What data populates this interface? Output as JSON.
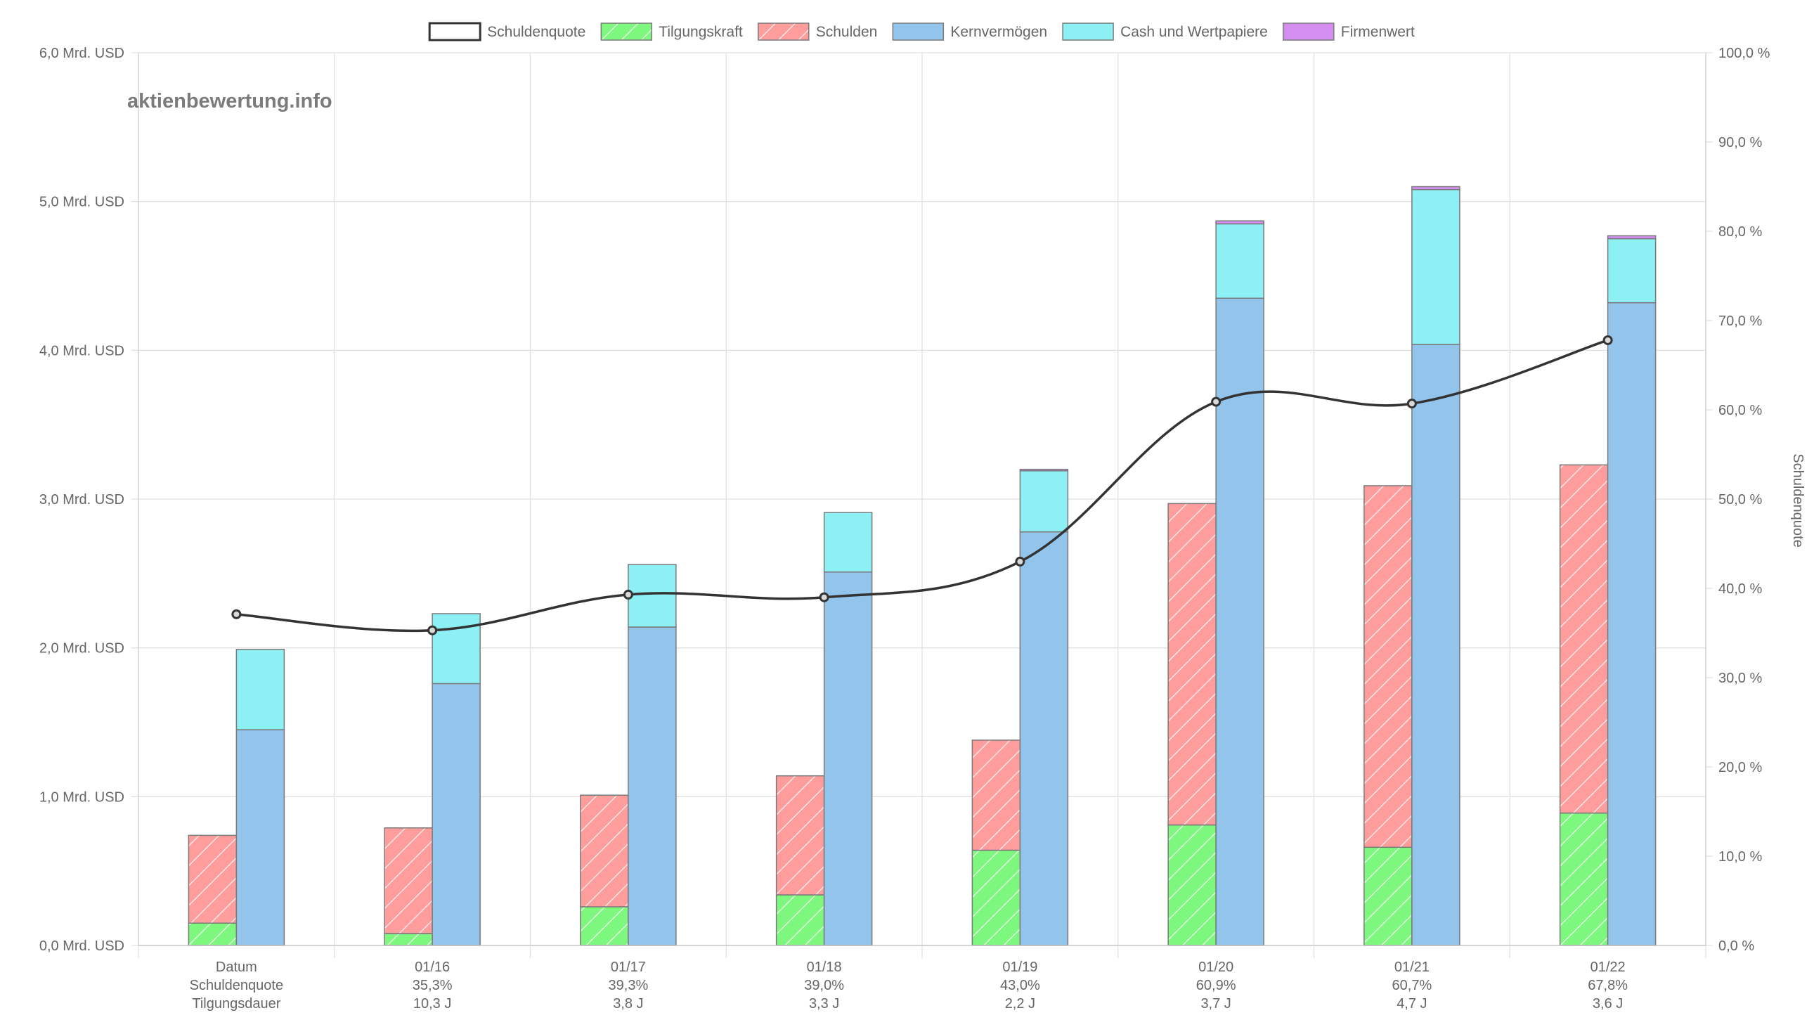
{
  "watermark": "aktienbewertung.info",
  "chart_data": {
    "type": "bar",
    "categories": [
      "Datum",
      "01/16",
      "01/17",
      "01/18",
      "01/19",
      "01/20",
      "01/21",
      "01/22"
    ],
    "table_rows": {
      "schuldenquote_label": "Schuldenquote",
      "tilgungsdauer_label": "Tilgungsdauer",
      "schuldenquote": [
        "",
        "35,3%",
        "39,3%",
        "39,0%",
        "43,0%",
        "60,9%",
        "60,7%",
        "67,8%"
      ],
      "tilgungsdauer": [
        "",
        "10,3 J",
        "3,8 J",
        "3,3 J",
        "2,2 J",
        "3,7 J",
        "4,7 J",
        "3,6 J"
      ]
    },
    "legend": [
      "Schuldenquote",
      "Tilgungskraft",
      "Schulden",
      "Kernvermögen",
      "Cash und Wertpapiere",
      "Firmenwert"
    ],
    "series": [
      {
        "name": "Schuldenquote",
        "axis": "right",
        "kind": "line",
        "values": [
          37.1,
          35.3,
          39.3,
          39.0,
          43.0,
          60.9,
          60.7,
          67.8
        ]
      },
      {
        "name": "Tilgungskraft",
        "stack": "liabilities",
        "values": [
          0.15,
          0.08,
          0.26,
          0.34,
          0.64,
          0.81,
          0.66,
          0.89
        ]
      },
      {
        "name": "Schulden",
        "stack": "liabilities",
        "values": [
          0.59,
          0.71,
          0.75,
          0.8,
          0.74,
          2.16,
          2.43,
          2.34
        ]
      },
      {
        "name": "Kernvermögen",
        "stack": "assets",
        "values": [
          1.45,
          1.76,
          2.14,
          2.51,
          2.78,
          4.35,
          4.04,
          4.32
        ]
      },
      {
        "name": "Cash und Wertpapiere",
        "stack": "assets",
        "values": [
          0.54,
          0.47,
          0.42,
          0.4,
          0.41,
          0.5,
          1.04,
          0.43
        ]
      },
      {
        "name": "Firmenwert",
        "stack": "assets",
        "values": [
          0.0,
          0.0,
          0.0,
          0.0,
          0.01,
          0.02,
          0.02,
          0.02
        ]
      }
    ],
    "y_left": {
      "min": 0,
      "max": 6,
      "step": 1,
      "tick_labels": [
        "0,0 Mrd. USD",
        "1,0 Mrd. USD",
        "2,0 Mrd. USD",
        "3,0 Mrd. USD",
        "4,0 Mrd. USD",
        "5,0 Mrd. USD",
        "6,0 Mrd. USD"
      ]
    },
    "y_right": {
      "min": 0,
      "max": 100,
      "step": 10,
      "title": "Schuldenquote",
      "tick_labels": [
        "0,0 %",
        "10,0 %",
        "20,0 %",
        "30,0 %",
        "40,0 %",
        "50,0 %",
        "60,0 %",
        "70,0 %",
        "80,0 %",
        "90,0 %",
        "100,0 %"
      ]
    },
    "colors": {
      "Schuldenquote": "#333333",
      "Tilgungskraft": "#7ef77e",
      "Schulden": "#ff9c9c",
      "Kernvermögen": "#93c4ec",
      "Cash und Wertpapiere": "#8cf0f4",
      "Firmenwert": "#d48ef0",
      "border": "#7a7a7a"
    },
    "grid": true,
    "legend_position": "top-center"
  }
}
